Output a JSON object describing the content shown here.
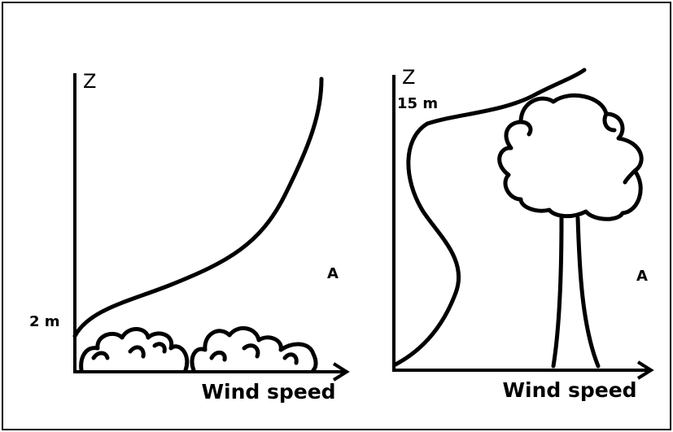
{
  "panels": [
    {
      "axis_label": "Z",
      "height_label": "2 m",
      "marker": "A",
      "x_label": "Wind speed"
    },
    {
      "axis_label": "Z",
      "height_label": "15 m",
      "marker": "A",
      "x_label": "Wind speed"
    }
  ]
}
